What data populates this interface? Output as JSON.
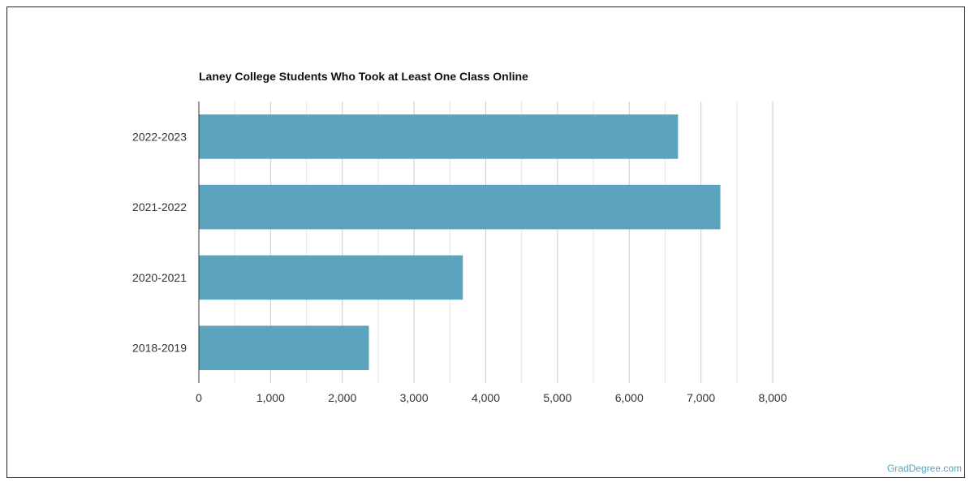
{
  "chart_data": {
    "type": "bar",
    "orientation": "horizontal",
    "title": "Laney College Students Who Took at Least One Class Online",
    "xlabel": "",
    "ylabel": "",
    "categories": [
      "2022-2023",
      "2021-2022",
      "2020-2021",
      "2018-2019"
    ],
    "values": [
      6680,
      7270,
      3680,
      2370
    ],
    "xlim": [
      0,
      8000
    ],
    "x_ticks": [
      "0",
      "1,000",
      "2,000",
      "3,000",
      "4,000",
      "5,000",
      "6,000",
      "7,000",
      "8,000"
    ],
    "grid": true,
    "bar_color": "#5ca3bd"
  },
  "watermark": "GradDegree.com"
}
